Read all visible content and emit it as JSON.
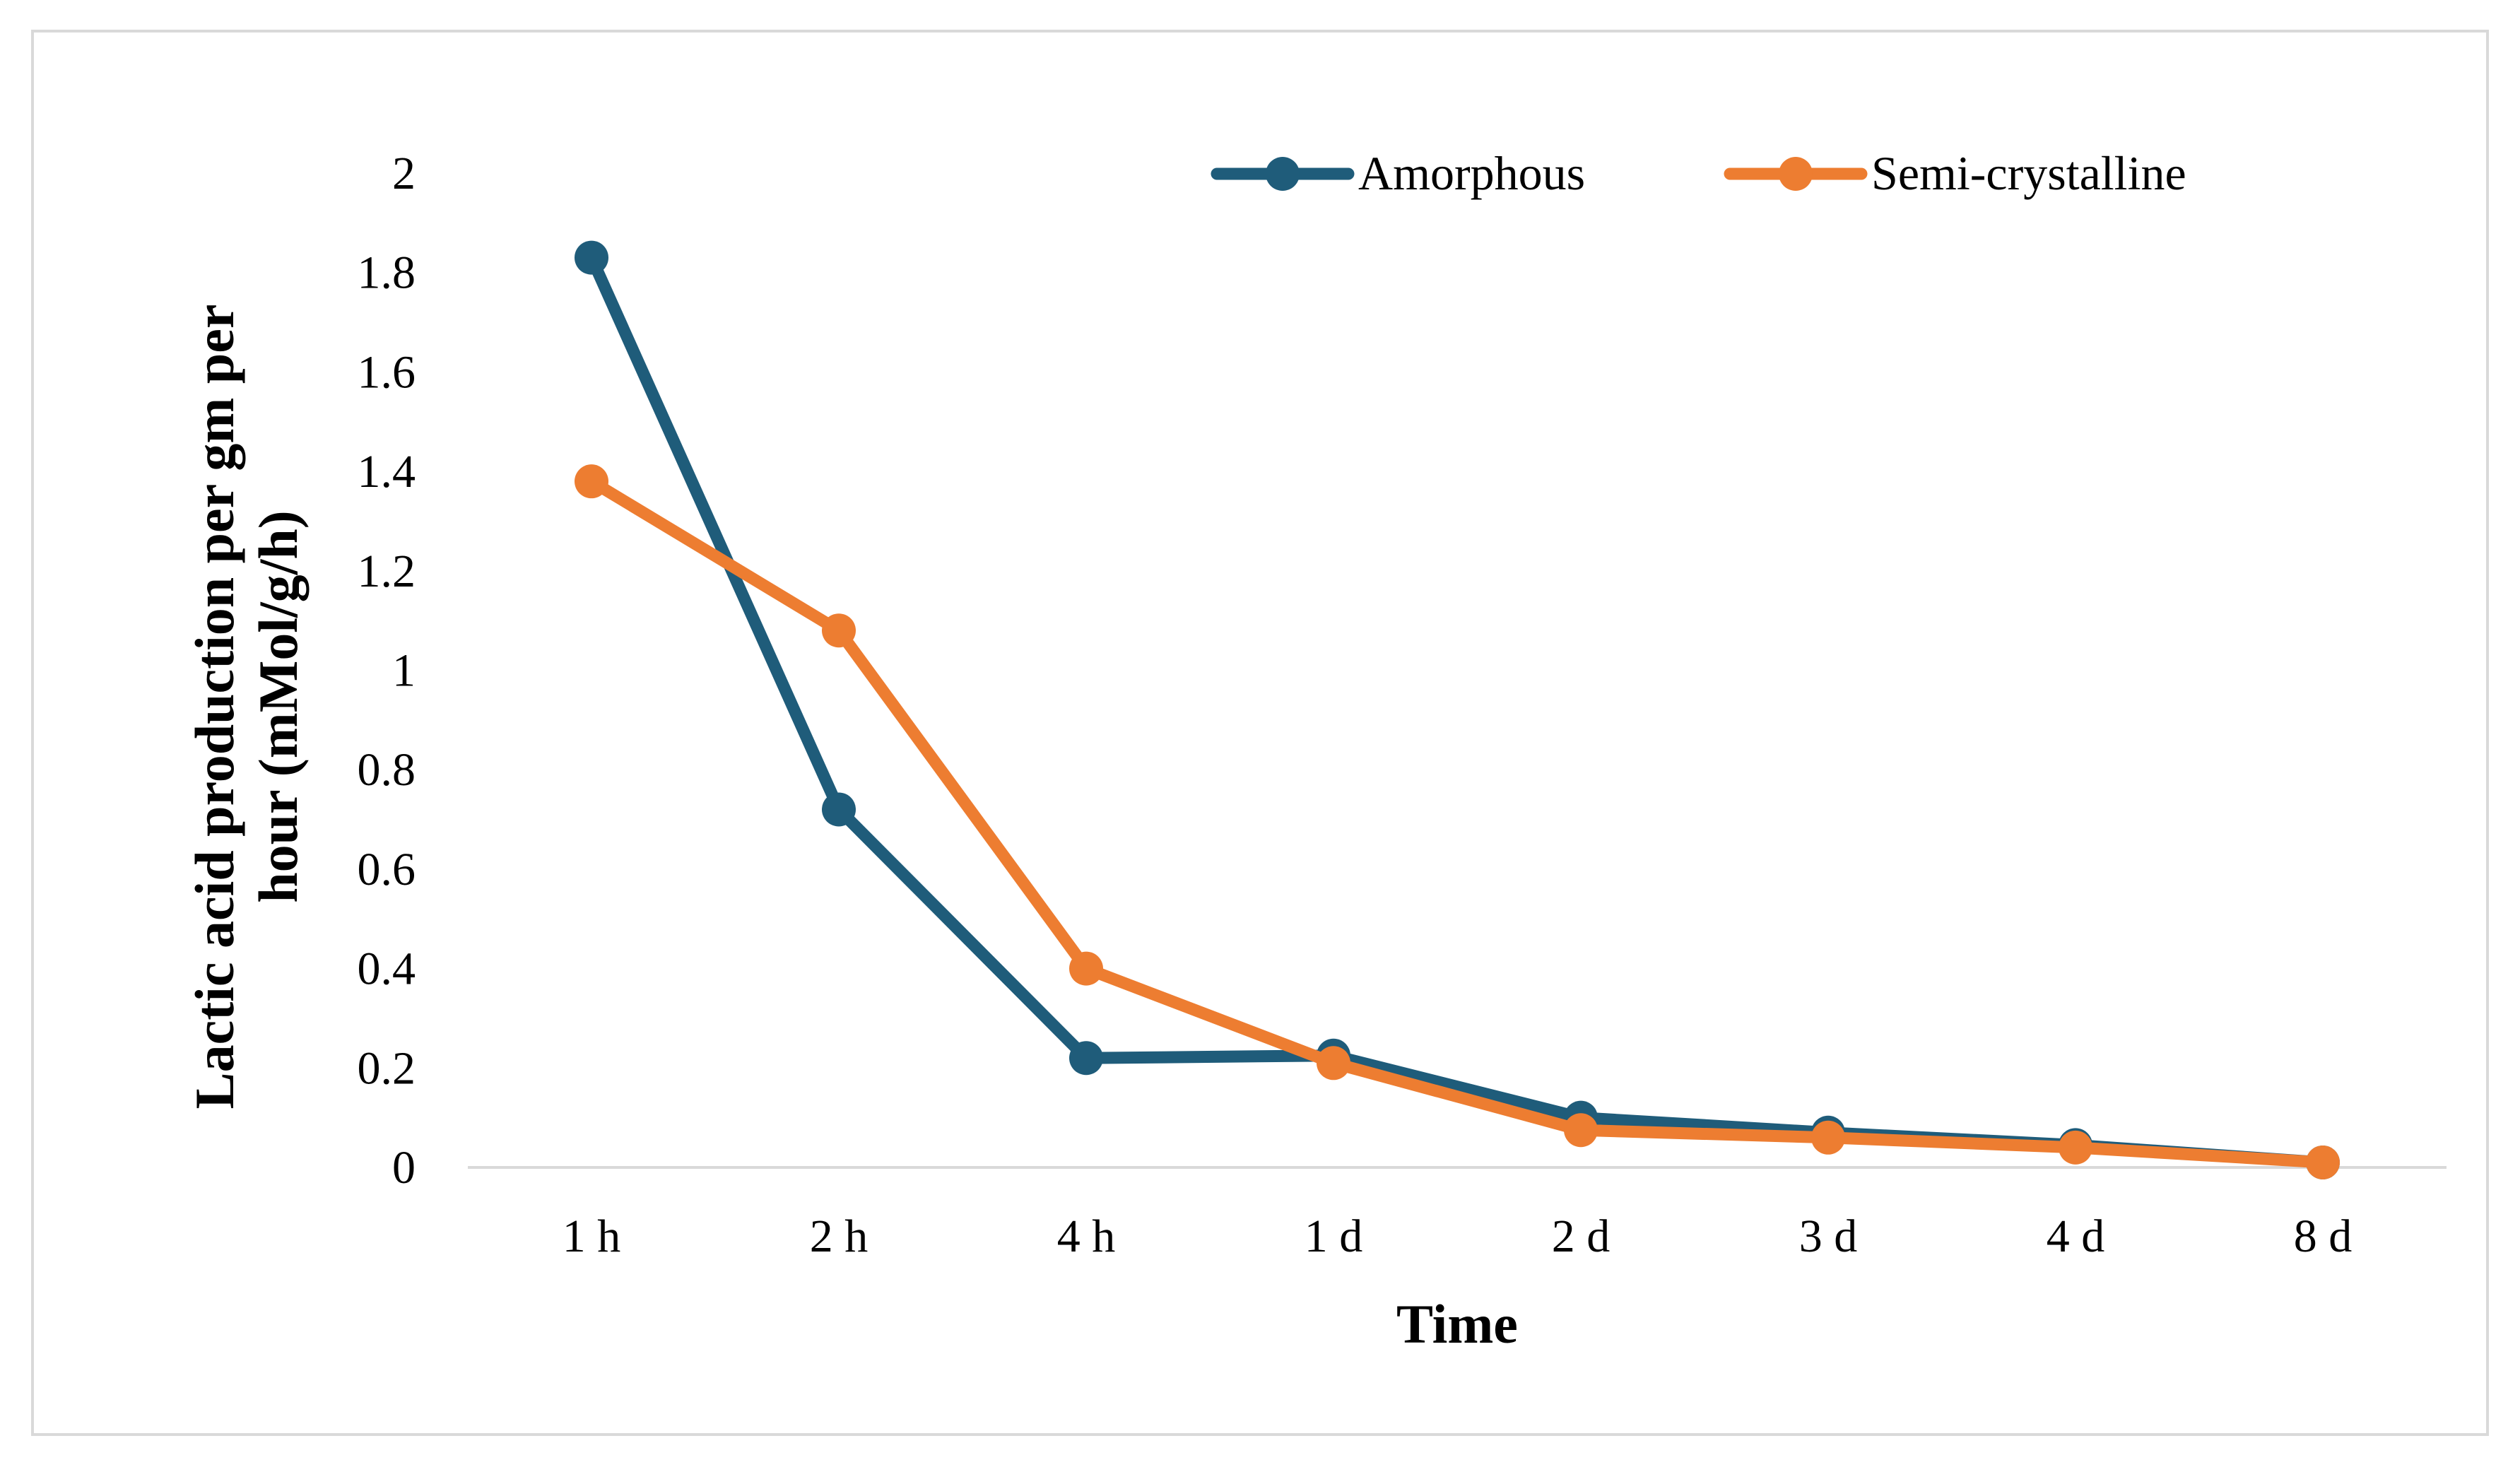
{
  "chart_data": {
    "type": "line",
    "title": "",
    "xlabel": "Time",
    "ylabel": "Lactic acid production per gm per hour (mMol/g/h)",
    "ylabel_lines": [
      "Lactic acid production per gm per",
      "hour (mMol/g/h)"
    ],
    "categories": [
      "1 h",
      "2 h",
      "4 h",
      "1 d",
      "2 d",
      "3 d",
      "4 d",
      "8 d"
    ],
    "ylim": [
      0,
      2
    ],
    "yticks": [
      0,
      0.2,
      0.4,
      0.6,
      0.8,
      1,
      1.2,
      1.4,
      1.6,
      1.8,
      2
    ],
    "ytick_labels": [
      "0",
      "0.2",
      "0.4",
      "0.6",
      "0.8",
      "1",
      "1.2",
      "1.4",
      "1.6",
      "1.8",
      "2"
    ],
    "grid": false,
    "legend_position": "top-right",
    "series": [
      {
        "name": "Amorphous",
        "color": "#1f5c7a",
        "values": [
          1.83,
          0.72,
          0.22,
          0.225,
          0.1,
          0.07,
          0.045,
          0.01
        ]
      },
      {
        "name": "Semi-crystalline",
        "color": "#ed7d31",
        "values": [
          1.38,
          1.08,
          0.4,
          0.21,
          0.075,
          0.06,
          0.04,
          0.01
        ]
      }
    ]
  }
}
